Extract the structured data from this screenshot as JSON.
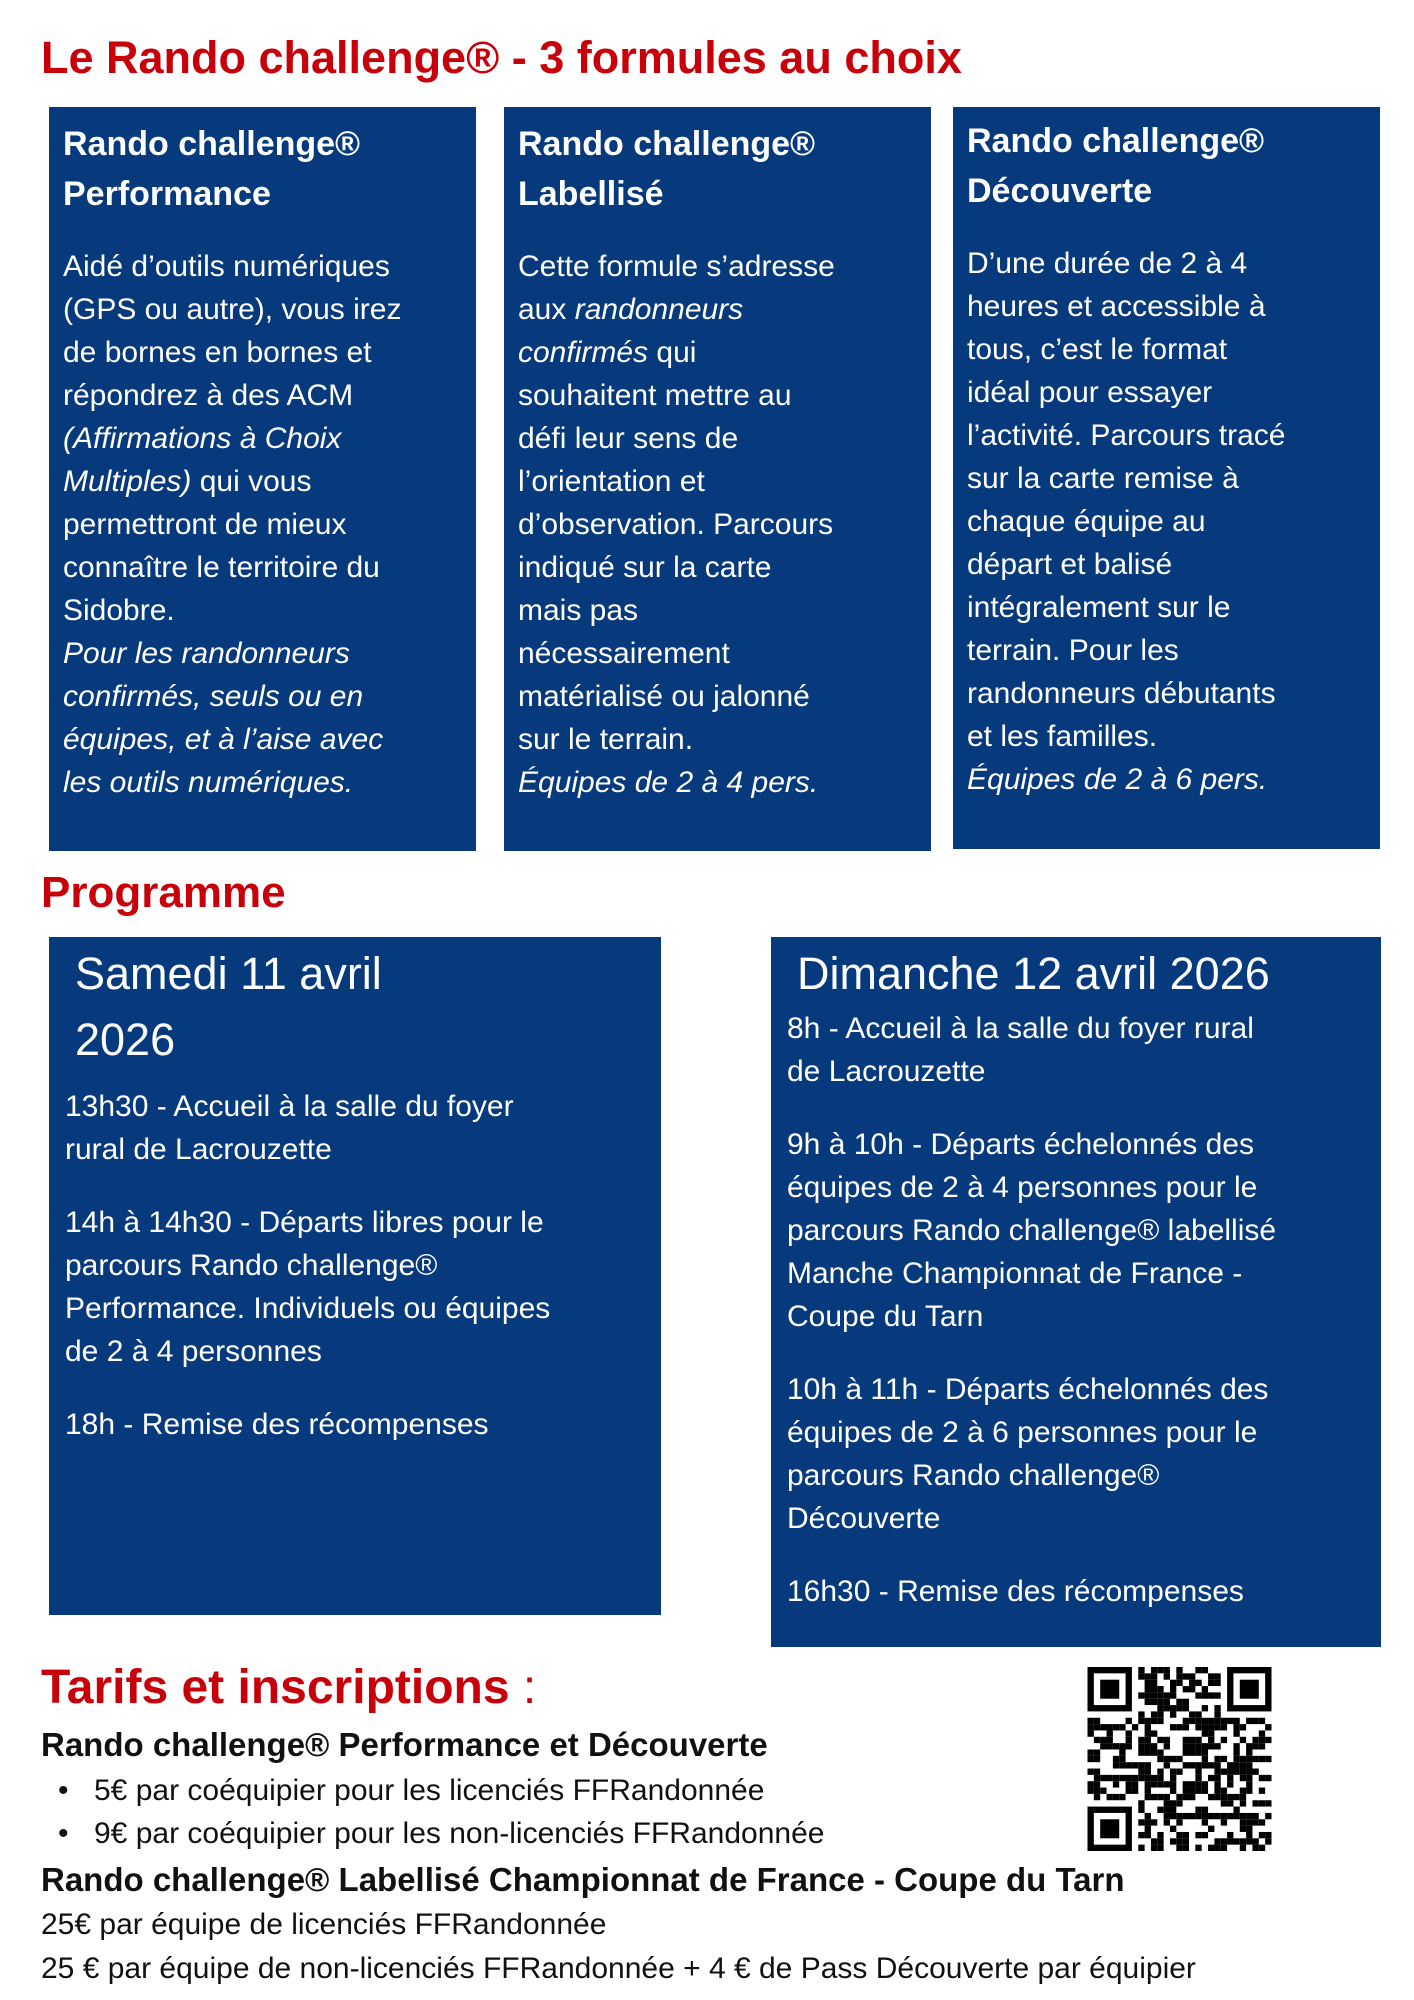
{
  "title": "Le Rando challenge® - 3 formules au choix",
  "colors": {
    "accent_red": "#c8000a",
    "box_blue": "#073a7c"
  },
  "formulas": [
    {
      "heading": [
        "Rando challenge®",
        "Performance"
      ],
      "lines": [
        [
          {
            "t": "Aidé d’outils numériques",
            "i": false
          }
        ],
        [
          {
            "t": "(GPS ou autre), vous irez",
            "i": false
          }
        ],
        [
          {
            "t": "de bornes en bornes et",
            "i": false
          }
        ],
        [
          {
            "t": "répondrez à des ACM",
            "i": false
          }
        ],
        [
          {
            "t": "(Affirmations à Choix",
            "i": true
          }
        ],
        [
          {
            "t": "Multiples)",
            "i": true
          },
          {
            "t": " qui vous",
            "i": false
          }
        ],
        [
          {
            "t": "permettront de mieux",
            "i": false
          }
        ],
        [
          {
            "t": "connaître le territoire du",
            "i": false
          }
        ],
        [
          {
            "t": "Sidobre.",
            "i": false
          }
        ],
        [
          {
            "t": "Pour les randonneurs",
            "i": true
          }
        ],
        [
          {
            "t": "confirmés, seuls ou en",
            "i": true
          }
        ],
        [
          {
            "t": "équipes, et à l’aise avec",
            "i": true
          }
        ],
        [
          {
            "t": "les outils numériques.",
            "i": true
          }
        ]
      ]
    },
    {
      "heading": [
        "Rando challenge®",
        "Labellisé"
      ],
      "lines": [
        [
          {
            "t": "Cette formule s’adresse",
            "i": false
          }
        ],
        [
          {
            "t": "aux ",
            "i": false
          },
          {
            "t": "randonneurs",
            "i": true
          }
        ],
        [
          {
            "t": "confirmés",
            "i": true
          },
          {
            "t": " qui",
            "i": false
          }
        ],
        [
          {
            "t": "souhaitent mettre au",
            "i": false
          }
        ],
        [
          {
            "t": "défi leur sens de",
            "i": false
          }
        ],
        [
          {
            "t": "l’orientation et",
            "i": false
          }
        ],
        [
          {
            "t": "d’observation. Parcours",
            "i": false
          }
        ],
        [
          {
            "t": "indiqué sur la carte",
            "i": false
          }
        ],
        [
          {
            "t": "mais pas",
            "i": false
          }
        ],
        [
          {
            "t": "nécessairement",
            "i": false
          }
        ],
        [
          {
            "t": "matérialisé ou jalonné",
            "i": false
          }
        ],
        [
          {
            "t": "sur le terrain.",
            "i": false
          }
        ],
        [
          {
            "t": "Équipes de 2 à 4 pers.",
            "i": true
          }
        ]
      ]
    },
    {
      "heading": [
        "Rando challenge®",
        "Découverte"
      ],
      "lines": [
        [
          {
            "t": "D’une durée de 2 à 4",
            "i": false
          }
        ],
        [
          {
            "t": "heures et accessible à",
            "i": false
          }
        ],
        [
          {
            "t": "tous, c’est le format",
            "i": false
          }
        ],
        [
          {
            "t": "idéal pour essayer",
            "i": false
          }
        ],
        [
          {
            "t": "l’activité. Parcours tracé",
            "i": false
          }
        ],
        [
          {
            "t": "sur la carte remise à",
            "i": false
          }
        ],
        [
          {
            "t": "chaque équipe au",
            "i": false
          }
        ],
        [
          {
            "t": "départ et balisé",
            "i": false
          }
        ],
        [
          {
            "t": "intégralement sur le",
            "i": false
          }
        ],
        [
          {
            "t": "terrain. Pour les",
            "i": false
          }
        ],
        [
          {
            "t": "randonneurs débutants",
            "i": false
          }
        ],
        [
          {
            "t": "et les familles.",
            "i": false
          }
        ],
        [
          {
            "t": "Équipes de 2 à 6 pers.",
            "i": true
          }
        ]
      ]
    }
  ],
  "programme": {
    "title": "Programme",
    "days": [
      {
        "heading": [
          "Samedi 11 avril",
          "2026"
        ],
        "items": [
          [
            "13h30 - Accueil à la salle du foyer",
            "rural de Lacrouzette"
          ],
          [
            "14h à 14h30 - Départs libres pour le",
            "parcours Rando challenge®",
            "Performance.  Individuels ou équipes",
            "de 2 à 4 personnes"
          ],
          [
            "18h - Remise des récompenses"
          ]
        ]
      },
      {
        "heading": [
          "Dimanche 12 avril 2026"
        ],
        "items": [
          [
            "8h - Accueil à la salle du foyer rural",
            "de Lacrouzette"
          ],
          [
            "9h à 10h - Départs échelonnés des",
            "équipes de 2 à 4 personnes pour le",
            "parcours Rando challenge® labellisé",
            "Manche Championnat de France -",
            "Coupe du Tarn"
          ],
          [
            "10h à 11h - Départs échelonnés des",
            "équipes de 2 à 6 personnes pour le",
            "parcours Rando challenge®",
            "Découverte"
          ],
          [
            "16h30 - Remise des récompenses"
          ]
        ]
      }
    ]
  },
  "tarifs": {
    "title": "Tarifs et inscriptions",
    "colon": " :",
    "group1": {
      "heading": "Rando challenge® Performance et Découverte",
      "bullets": [
        "5€ par coéquipier pour les licenciés FFRandonnée",
        "9€ par coéquipier pour les non-licenciés FFRandonnée"
      ]
    },
    "group2": {
      "heading": "Rando challenge® Labellisé Championnat de France - Coupe du Tarn",
      "lines": [
        "25€ par équipe de licenciés FFRandonnée",
        "25 € par équipe de non-licenciés FFRandonnée + 4 € de Pass Découverte par équipier"
      ]
    },
    "qr_icon": "qr-code"
  }
}
